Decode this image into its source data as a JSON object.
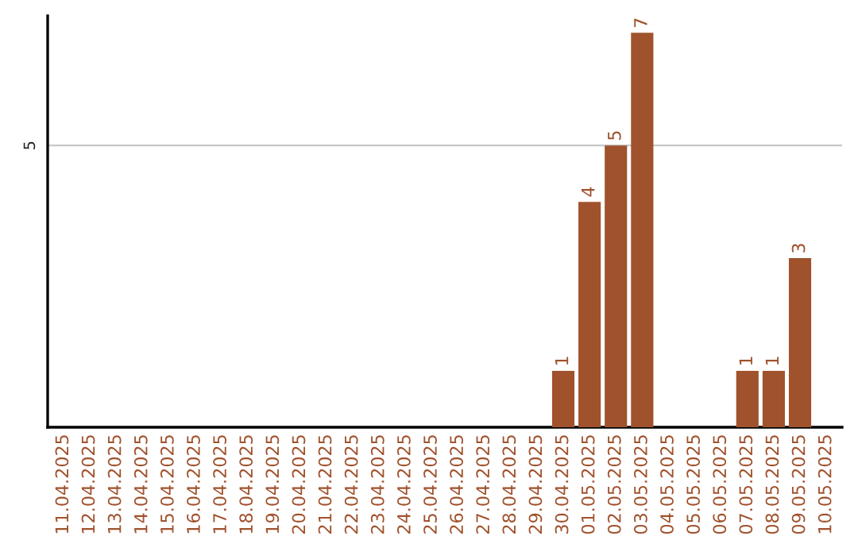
{
  "chart_data": {
    "type": "bar",
    "ylim": [
      0,
      7.3
    ],
    "categories": [
      "11.04.2025",
      "12.04.2025",
      "13.04.2025",
      "14.04.2025",
      "15.04.2025",
      "16.04.2025",
      "17.04.2025",
      "18.04.2025",
      "19.04.2025",
      "20.04.2025",
      "21.04.2025",
      "22.04.2025",
      "23.04.2025",
      "24.04.2025",
      "25.04.2025",
      "26.04.2025",
      "27.04.2025",
      "28.04.2025",
      "29.04.2025",
      "30.04.2025",
      "01.05.2025",
      "02.05.2025",
      "03.05.2025",
      "04.05.2025",
      "05.05.2025",
      "06.05.2025",
      "07.05.2025",
      "08.05.2025",
      "09.05.2025",
      "10.05.2025"
    ],
    "values": [
      null,
      null,
      null,
      null,
      null,
      null,
      null,
      null,
      null,
      null,
      null,
      null,
      null,
      null,
      null,
      null,
      null,
      null,
      null,
      1,
      4,
      5,
      7,
      null,
      null,
      null,
      1,
      1,
      3,
      null
    ],
    "data_labels": true,
    "color": "#a0522d",
    "ref_lines": [
      {
        "axis": "y",
        "value": 5,
        "label": "5",
        "color": "#c8c8c8"
      }
    ]
  }
}
